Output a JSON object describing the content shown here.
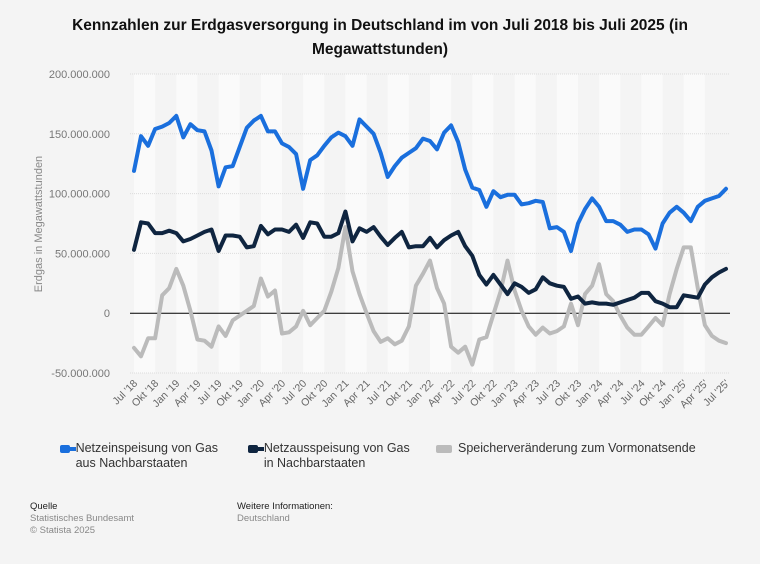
{
  "title": "Kennzahlen zur Erdgasversorgung in Deutschland im von Juli 2018 bis Juli 2025 (in Megawattstunden)",
  "legend": [
    {
      "label": "Netzeinspeisung von Gas aus Nachbarstaaten",
      "color": "#1a6fdd"
    },
    {
      "label": "Netzausspeisung von Gas in Nachbarstaaten",
      "color": "#0f2540"
    },
    {
      "label": "Speicherveränderung zum Vormonatsende",
      "color": "#bbbbbb"
    }
  ],
  "footer": {
    "source_heading": "Quelle",
    "source_lines": [
      "Statistisches Bundesamt",
      "© Statista 2025"
    ],
    "info_heading": "Weitere Informationen:",
    "info_lines": [
      "Deutschland"
    ]
  },
  "chart_data": {
    "type": "line",
    "title": "Kennzahlen zur Erdgasversorgung in Deutschland im von Juli 2018 bis Juli 2025 (in Megawattstunden)",
    "xlabel": "",
    "ylabel": "Erdgas in Megawattstunden",
    "ylim": [
      -50000000,
      200000000
    ],
    "yticks": [
      200000000,
      150000000,
      100000000,
      50000000,
      0,
      -50000000
    ],
    "ytick_labels": [
      "200.000.000",
      "150.000.000",
      "100.000.000",
      "50.000.000",
      "0",
      "-50.000.000"
    ],
    "grid": true,
    "legend_position": "bottom",
    "x_start": "Jul 2018",
    "x_end": "Jul 2025",
    "xtick_labels": [
      "Jul '18",
      "Okt '18",
      "Jan '19",
      "Apr '19",
      "Jul '19",
      "Okt '19",
      "Jan '20",
      "Apr '20",
      "Jul '20",
      "Okt '20",
      "Jan '21",
      "Apr '21",
      "Jul '21",
      "Okt '21",
      "Jan '22",
      "Apr '22",
      "Jul '22",
      "Okt '22",
      "Jan '23",
      "Apr '23",
      "Jul '23",
      "Okt '23",
      "Jan '24",
      "Apr '24",
      "Jul '24",
      "Okt '24",
      "Jan '25'",
      "Apr '25'",
      "Jul '25'"
    ],
    "unit_multiplier": 1000000,
    "series": [
      {
        "name": "Netzeinspeisung von Gas aus Nachbarstaaten",
        "color": "#1a6fdd",
        "values_millions": [
          119,
          148,
          140,
          154,
          156,
          159,
          165,
          147,
          158,
          153,
          152,
          136,
          106,
          122,
          123,
          139,
          155,
          161,
          165,
          152,
          152,
          142,
          139,
          133,
          104,
          128,
          132,
          140,
          147,
          151,
          148,
          140,
          162,
          156,
          150,
          134,
          114,
          123,
          130,
          134,
          138,
          146,
          144,
          137,
          151,
          157,
          143,
          120,
          105,
          103,
          89,
          102,
          97,
          99,
          99,
          91,
          92,
          94,
          93,
          71,
          72,
          68,
          52,
          75,
          87,
          96,
          89,
          77,
          77,
          74,
          68,
          70,
          70,
          66,
          54,
          75,
          84,
          89,
          84,
          77,
          89,
          94,
          96,
          98,
          104
        ]
      },
      {
        "name": "Netzausspeisung von Gas in Nachbarstaaten",
        "color": "#0f2540",
        "values_millions": [
          53,
          76,
          75,
          67,
          67,
          69,
          67,
          60,
          62,
          65,
          68,
          70,
          52,
          65,
          65,
          64,
          55,
          56,
          73,
          66,
          70,
          70,
          68,
          74,
          63,
          76,
          75,
          64,
          64,
          67,
          85,
          60,
          71,
          68,
          72,
          64,
          57,
          63,
          68,
          55,
          56,
          56,
          63,
          55,
          61,
          65,
          68,
          56,
          48,
          32,
          24,
          32,
          24,
          16,
          25,
          22,
          17,
          20,
          30,
          25,
          23,
          22,
          12,
          14,
          8,
          9,
          8,
          8,
          7,
          9,
          11,
          13,
          17,
          17,
          10,
          8,
          5,
          5,
          15,
          14,
          13,
          24,
          30,
          34,
          37
        ]
      },
      {
        "name": "Speicherveränderung zum Vormonatsende",
        "color": "#bbbbbb",
        "values_millions": [
          -29,
          -36,
          -21,
          -21,
          15,
          21,
          37,
          23,
          2,
          -22,
          -23,
          -28,
          -11,
          -19,
          -6,
          -2,
          2,
          6,
          29,
          14,
          19,
          -17,
          -16,
          -11,
          2,
          -10,
          -4,
          2,
          18,
          38,
          72,
          35,
          16,
          0,
          -15,
          -24,
          -21,
          -26,
          -23,
          -11,
          23,
          33,
          44,
          21,
          8,
          -28,
          -33,
          -28,
          -43,
          -22,
          -20,
          -1,
          18,
          44,
          19,
          2,
          -11,
          -18,
          -12,
          -17,
          -15,
          -11,
          8,
          -10,
          16,
          23,
          41,
          16,
          10,
          -2,
          -12,
          -18,
          -18,
          -11,
          -4,
          -10,
          16,
          37,
          55,
          55,
          21,
          -10,
          -19,
          -23,
          -25
        ]
      }
    ]
  }
}
